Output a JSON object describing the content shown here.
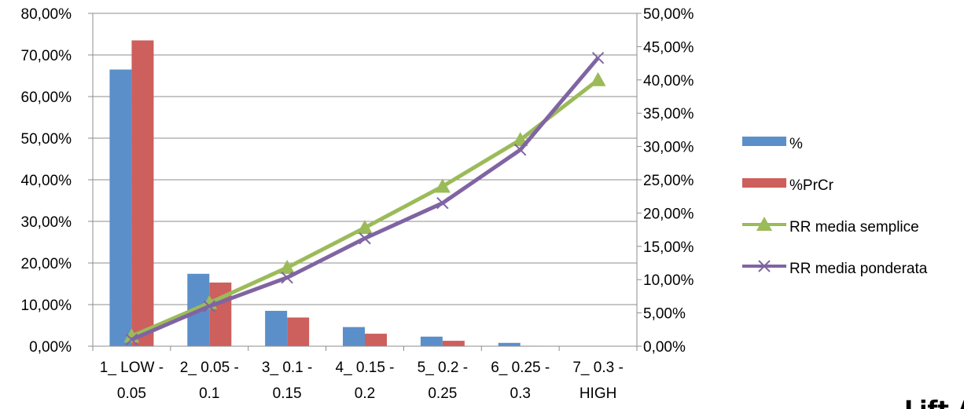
{
  "chart_data": {
    "type": "bar",
    "categories": [
      [
        "1_ LOW -",
        "0.05"
      ],
      [
        "2_ 0.05 -",
        "0.1"
      ],
      [
        "3_ 0.1 -",
        "0.15"
      ],
      [
        "4_ 0.15 -",
        "0.2"
      ],
      [
        "5_ 0.2 -",
        "0.25"
      ],
      [
        "6_ 0.25 -",
        "0.3"
      ],
      [
        "7_ 0.3 -",
        "HIGH"
      ]
    ],
    "series": [
      {
        "name": "%",
        "type": "bar",
        "axis": "left",
        "color": "#5B8FC9",
        "values": [
          66.5,
          17.4,
          8.5,
          4.6,
          2.3,
          0.8,
          0.05
        ]
      },
      {
        "name": "%PrCr",
        "type": "bar",
        "axis": "left",
        "color": "#CD5F5C",
        "values": [
          73.5,
          15.3,
          6.9,
          3.0,
          1.3,
          0.1,
          0.0
        ]
      },
      {
        "name": "RR media semplice",
        "type": "line",
        "axis": "right",
        "marker": "triangle",
        "color": "#9BBB59",
        "values": [
          1.5,
          6.5,
          11.8,
          17.8,
          24.0,
          31.0,
          40.0
        ]
      },
      {
        "name": "RR media ponderata",
        "type": "line",
        "axis": "right",
        "marker": "x",
        "color": "#8064A2",
        "values": [
          1.0,
          6.0,
          10.3,
          16.2,
          21.5,
          29.5,
          43.3
        ]
      }
    ],
    "y_left": {
      "min": 0,
      "max": 80,
      "step": 10,
      "tick_labels": [
        "0,00%",
        "10,00%",
        "20,00%",
        "30,00%",
        "40,00%",
        "50,00%",
        "60,00%",
        "70,00%",
        "80,00%"
      ]
    },
    "y_right": {
      "min": 0,
      "max": 50,
      "step": 5,
      "tick_labels": [
        "0,00%",
        "5,00%",
        "10,00%",
        "15,00%",
        "20,00%",
        "25,00%",
        "30,00%",
        "35,00%",
        "40,00%",
        "45,00%",
        "50,00%"
      ]
    },
    "grid": true,
    "legend_position": "right",
    "corner_text": "Lift A"
  }
}
